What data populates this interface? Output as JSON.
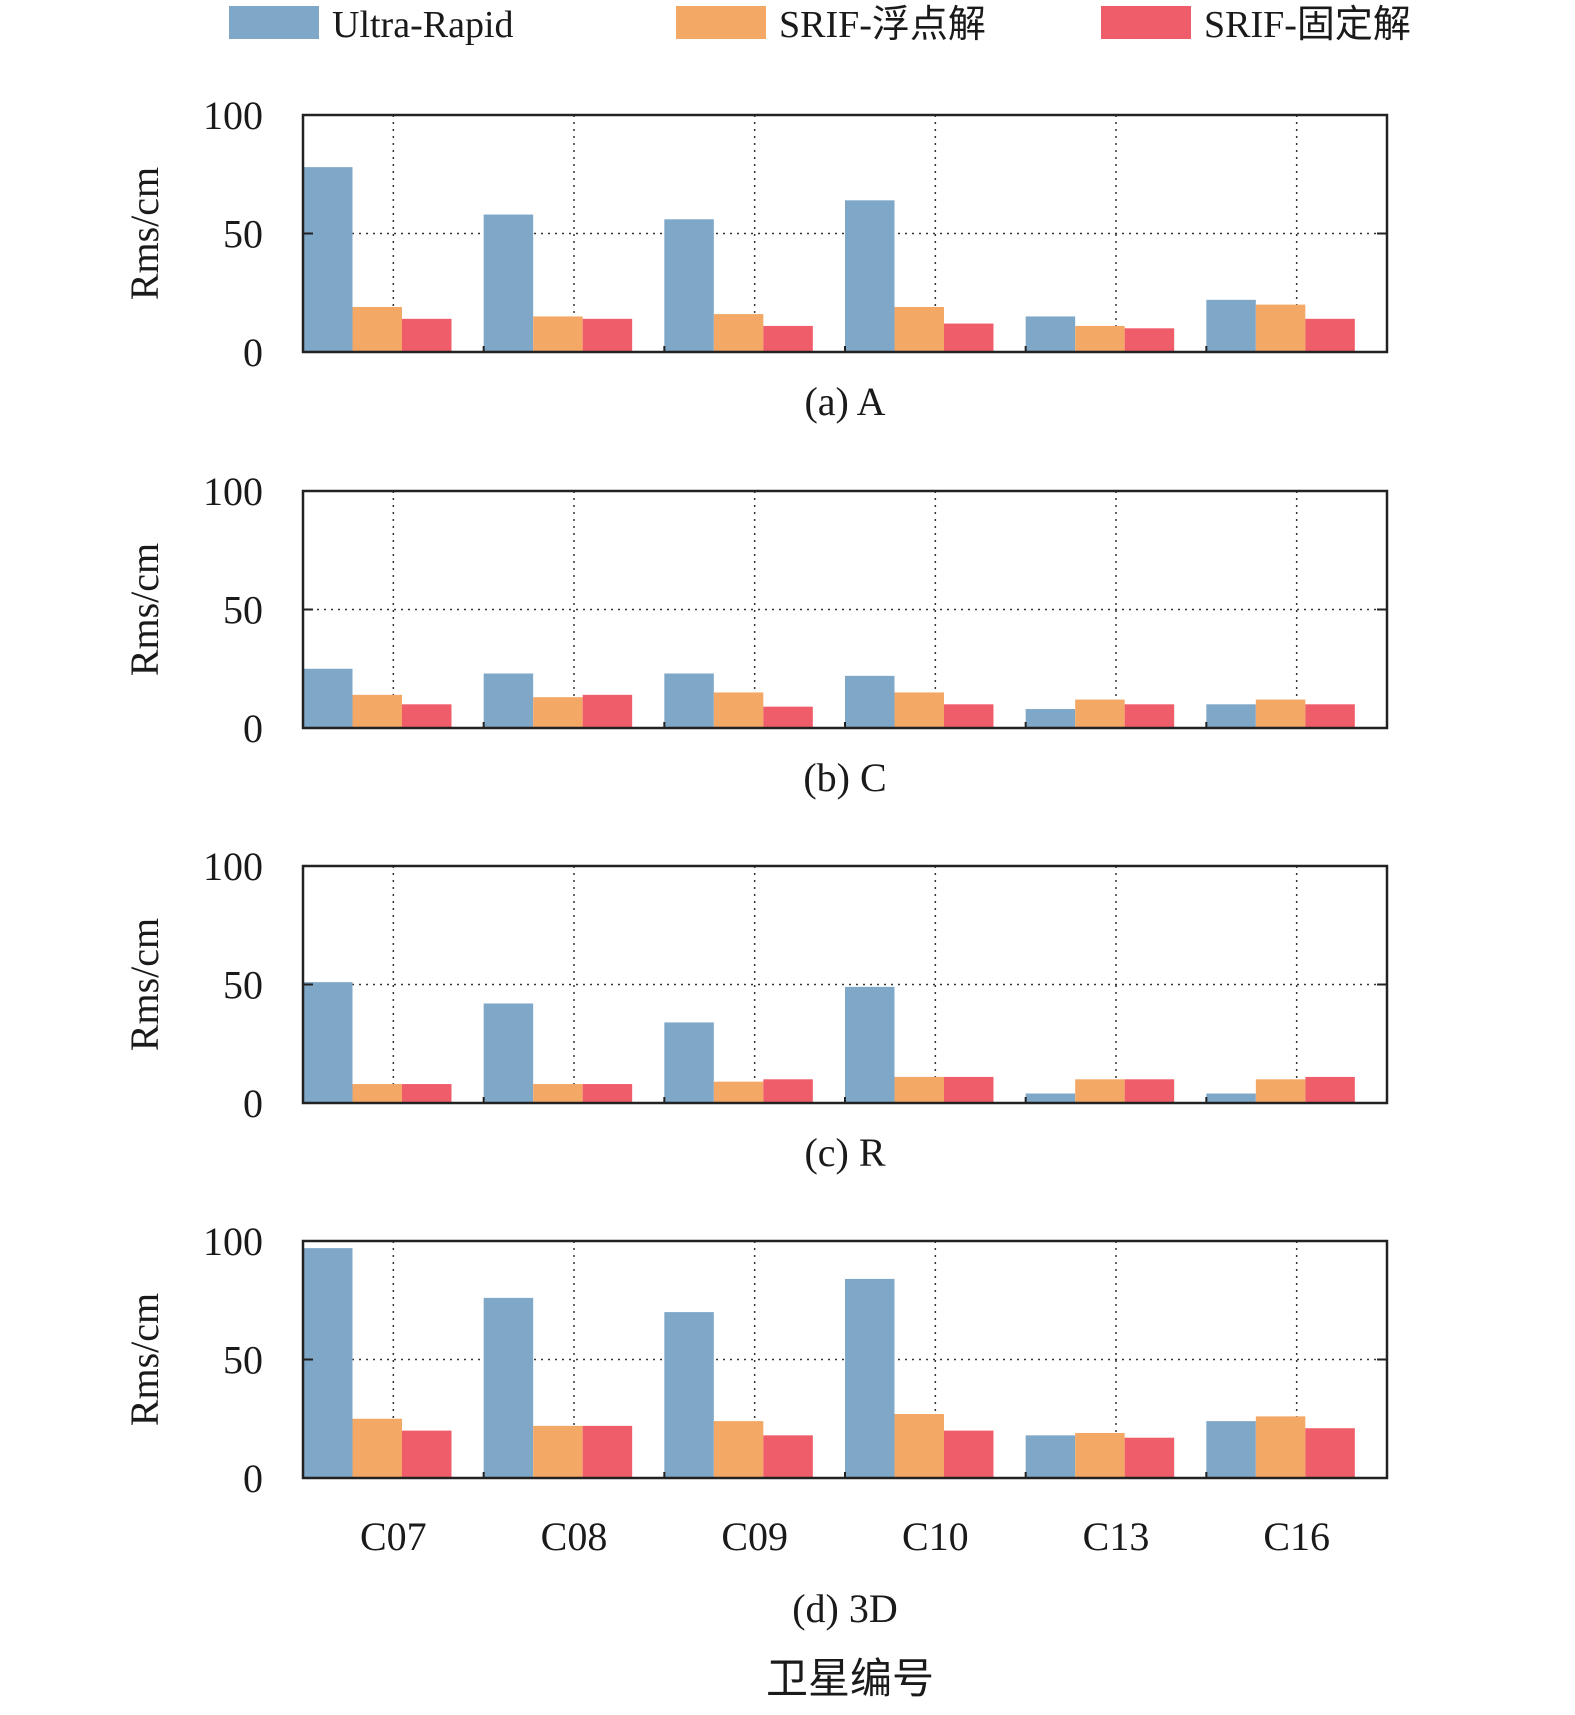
{
  "legend": {
    "items": [
      {
        "label": "Ultra-Rapid",
        "color": "#7ea7c8"
      },
      {
        "label": "SRIF-浮点解",
        "color": "#f4a866"
      },
      {
        "label": "SRIF-固定解",
        "color": "#ef5d6a"
      }
    ]
  },
  "xlabel": "卫星编号",
  "chart_data": [
    {
      "type": "bar",
      "title": "(a) A",
      "ylabel": "Rms/cm",
      "ylim": [
        0,
        100
      ],
      "yticks": [
        0,
        50,
        100
      ],
      "grid": true,
      "categories": [
        "C07",
        "C08",
        "C09",
        "C10",
        "C13",
        "C16"
      ],
      "series": [
        {
          "name": "Ultra-Rapid",
          "values": [
            78,
            58,
            56,
            64,
            15,
            22
          ]
        },
        {
          "name": "SRIF-浮点解",
          "values": [
            19,
            15,
            16,
            19,
            11,
            20
          ]
        },
        {
          "name": "SRIF-固定解",
          "values": [
            14,
            14,
            11,
            12,
            10,
            14
          ]
        }
      ]
    },
    {
      "type": "bar",
      "title": "(b) C",
      "ylabel": "Rms/cm",
      "ylim": [
        0,
        100
      ],
      "yticks": [
        0,
        50,
        100
      ],
      "grid": true,
      "categories": [
        "C07",
        "C08",
        "C09",
        "C10",
        "C13",
        "C16"
      ],
      "series": [
        {
          "name": "Ultra-Rapid",
          "values": [
            25,
            23,
            23,
            22,
            8,
            10
          ]
        },
        {
          "name": "SRIF-浮点解",
          "values": [
            14,
            13,
            15,
            15,
            12,
            12
          ]
        },
        {
          "name": "SRIF-固定解",
          "values": [
            10,
            14,
            9,
            10,
            10,
            10
          ]
        }
      ]
    },
    {
      "type": "bar",
      "title": "(c) R",
      "ylabel": "Rms/cm",
      "ylim": [
        0,
        100
      ],
      "yticks": [
        0,
        50,
        100
      ],
      "grid": true,
      "categories": [
        "C07",
        "C08",
        "C09",
        "C10",
        "C13",
        "C16"
      ],
      "series": [
        {
          "name": "Ultra-Rapid",
          "values": [
            51,
            42,
            34,
            49,
            4,
            4
          ]
        },
        {
          "name": "SRIF-浮点解",
          "values": [
            8,
            8,
            9,
            11,
            10,
            10
          ]
        },
        {
          "name": "SRIF-固定解",
          "values": [
            8,
            8,
            10,
            11,
            10,
            11
          ]
        }
      ]
    },
    {
      "type": "bar",
      "title": "(d) 3D",
      "ylabel": "Rms/cm",
      "ylim": [
        0,
        100
      ],
      "yticks": [
        0,
        50,
        100
      ],
      "grid": true,
      "show_x_ticklabels": true,
      "categories": [
        "C07",
        "C08",
        "C09",
        "C10",
        "C13",
        "C16"
      ],
      "series": [
        {
          "name": "Ultra-Rapid",
          "values": [
            97,
            76,
            70,
            84,
            18,
            24
          ]
        },
        {
          "name": "SRIF-浮点解",
          "values": [
            25,
            22,
            24,
            27,
            19,
            26
          ]
        },
        {
          "name": "SRIF-固定解",
          "values": [
            20,
            22,
            18,
            20,
            17,
            21
          ]
        }
      ]
    }
  ]
}
